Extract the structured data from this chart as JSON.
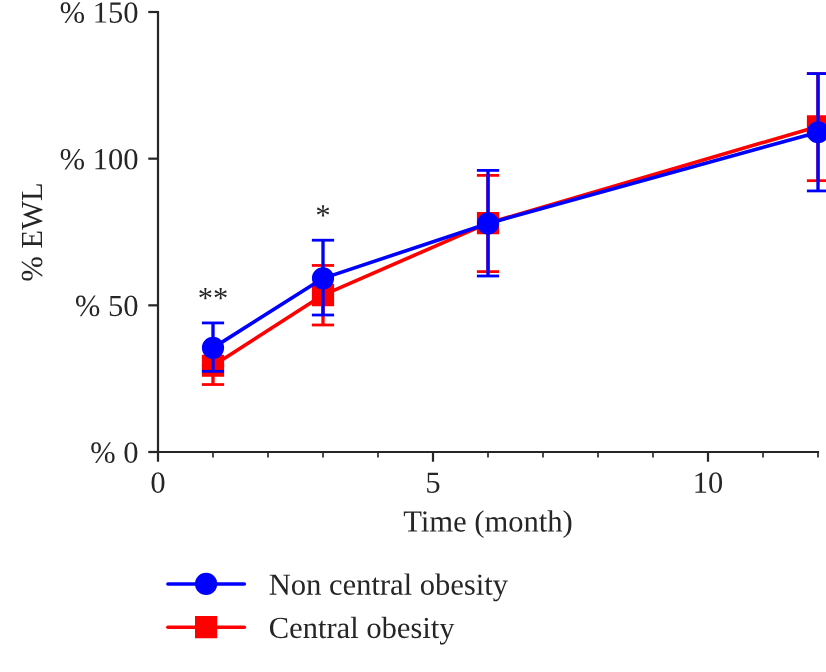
{
  "chart_data": {
    "type": "line",
    "xlabel": "Time (month)",
    "ylabel": "% EWL",
    "x": [
      1,
      3,
      6,
      12
    ],
    "series": [
      {
        "name": "Non central obesity",
        "color": "#0000ff",
        "marker": "circle",
        "values": [
          35.5,
          59.2,
          77.9,
          109
        ],
        "errors": [
          [
            27.5,
            44
          ],
          [
            46.7,
            72.2
          ],
          [
            60,
            96
          ],
          [
            89,
            129
          ]
        ]
      },
      {
        "name": "Central obesity",
        "color": "#ff0000",
        "marker": "square",
        "values": [
          29.4,
          53.5,
          78,
          111
        ],
        "errors": [
          [
            23,
            29.4
          ],
          [
            43.3,
            63.6
          ],
          [
            61.5,
            94.3
          ],
          [
            92.5,
            129
          ]
        ]
      }
    ],
    "xlim": [
      0,
      12
    ],
    "xticks": [
      0,
      5,
      10
    ],
    "ylim": [
      0,
      150
    ],
    "yticks": [
      {
        "value": 0,
        "label": "% 0"
      },
      {
        "value": 50,
        "label": "% 50"
      },
      {
        "value": 100,
        "label": "% 100"
      },
      {
        "value": 150,
        "label": "% 150"
      }
    ],
    "annotations": [
      {
        "text": "**",
        "x": 1,
        "y": 44
      },
      {
        "text": "*",
        "x": 3,
        "y": 72.2
      }
    ],
    "grid": false,
    "legend": "bottom left"
  }
}
